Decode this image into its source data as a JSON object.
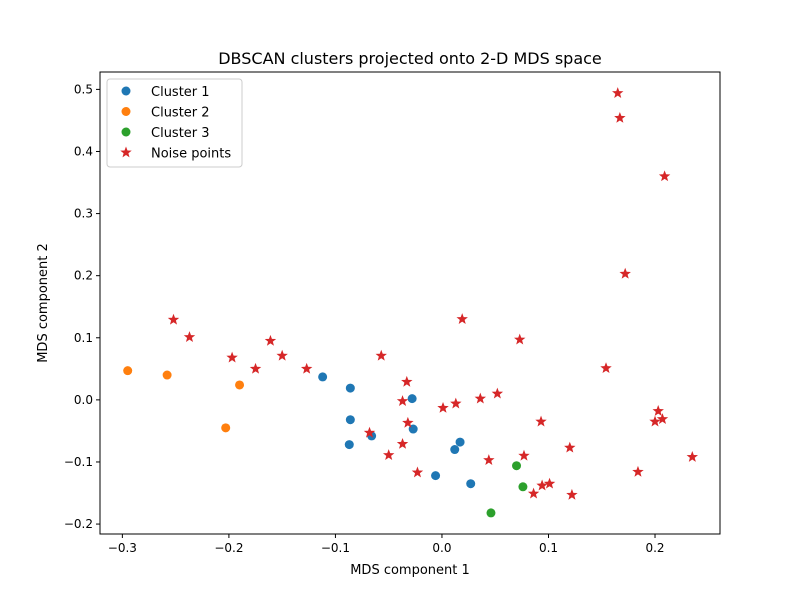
{
  "chart_data": {
    "type": "scatter",
    "title": "DBSCAN clusters projected onto 2-D MDS space",
    "xlabel": "MDS component 1",
    "ylabel": "MDS component 2",
    "xlim": [
      -0.321,
      0.261
    ],
    "ylim": [
      -0.216,
      0.528
    ],
    "xticks": [
      -0.3,
      -0.2,
      -0.1,
      0.0,
      0.1,
      0.2
    ],
    "xtick_labels": [
      "−0.3",
      "−0.2",
      "−0.1",
      "0.0",
      "0.1",
      "0.2"
    ],
    "yticks": [
      -0.2,
      -0.1,
      0.0,
      0.1,
      0.2,
      0.3,
      0.4,
      0.5
    ],
    "ytick_labels": [
      "−0.2",
      "−0.1",
      "0.0",
      "0.1",
      "0.2",
      "0.3",
      "0.4",
      "0.5"
    ],
    "grid": false,
    "legend_position": "top-left",
    "series": [
      {
        "name": "Cluster 1",
        "marker": "circle",
        "color": "#1f77b4",
        "points": [
          [
            -0.112,
            0.037
          ],
          [
            -0.086,
            0.019
          ],
          [
            -0.086,
            -0.032
          ],
          [
            -0.087,
            -0.072
          ],
          [
            -0.066,
            -0.058
          ],
          [
            -0.028,
            0.002
          ],
          [
            -0.027,
            -0.047
          ],
          [
            -0.006,
            -0.122
          ],
          [
            0.012,
            -0.08
          ],
          [
            0.017,
            -0.068
          ],
          [
            0.027,
            -0.135
          ]
        ]
      },
      {
        "name": "Cluster 2",
        "marker": "circle",
        "color": "#ff7f0e",
        "points": [
          [
            -0.295,
            0.047
          ],
          [
            -0.258,
            0.04
          ],
          [
            -0.19,
            0.024
          ],
          [
            -0.203,
            -0.045
          ]
        ]
      },
      {
        "name": "Cluster 3",
        "marker": "circle",
        "color": "#2ca02c",
        "points": [
          [
            0.07,
            -0.106
          ],
          [
            0.076,
            -0.14
          ],
          [
            0.046,
            -0.182
          ]
        ]
      },
      {
        "name": "Noise points",
        "marker": "star",
        "color": "#d62728",
        "points": [
          [
            0.165,
            0.494
          ],
          [
            0.167,
            0.454
          ],
          [
            0.209,
            0.36
          ],
          [
            0.172,
            0.203
          ],
          [
            -0.252,
            0.129
          ],
          [
            -0.237,
            0.101
          ],
          [
            -0.197,
            0.068
          ],
          [
            -0.161,
            0.095
          ],
          [
            -0.15,
            0.071
          ],
          [
            -0.175,
            0.05
          ],
          [
            -0.127,
            0.05
          ],
          [
            -0.057,
            0.071
          ],
          [
            0.019,
            0.13
          ],
          [
            0.073,
            0.097
          ],
          [
            0.154,
            0.051
          ],
          [
            -0.033,
            0.029
          ],
          [
            -0.037,
            -0.002
          ],
          [
            0.001,
            -0.013
          ],
          [
            0.013,
            -0.006
          ],
          [
            0.036,
            0.002
          ],
          [
            0.052,
            0.01
          ],
          [
            -0.068,
            -0.053
          ],
          [
            -0.032,
            -0.037
          ],
          [
            -0.037,
            -0.071
          ],
          [
            -0.05,
            -0.089
          ],
          [
            -0.023,
            -0.117
          ],
          [
            0.044,
            -0.097
          ],
          [
            0.077,
            -0.09
          ],
          [
            0.093,
            -0.035
          ],
          [
            0.12,
            -0.077
          ],
          [
            0.094,
            -0.138
          ],
          [
            0.101,
            -0.135
          ],
          [
            0.086,
            -0.151
          ],
          [
            0.122,
            -0.153
          ],
          [
            0.203,
            -0.018
          ],
          [
            0.207,
            -0.031
          ],
          [
            0.2,
            -0.035
          ],
          [
            0.184,
            -0.116
          ],
          [
            0.235,
            -0.092
          ]
        ]
      }
    ]
  }
}
